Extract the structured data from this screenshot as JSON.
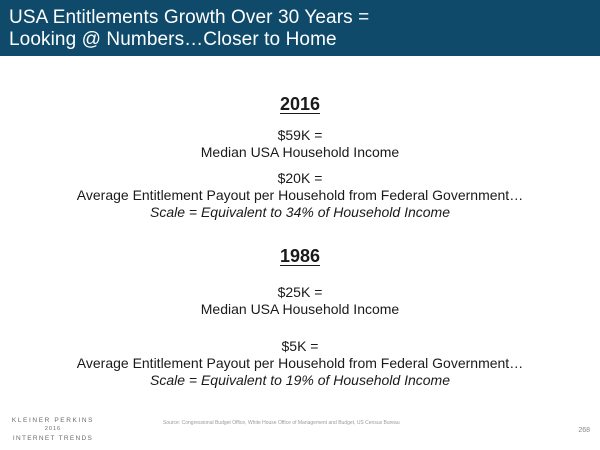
{
  "header": {
    "title_line1": "USA Entitlements Growth Over 30 Years =",
    "title_line2": "Looking @ Numbers…Closer to Home"
  },
  "sections": [
    {
      "year": "2016",
      "income_value": "$59K =",
      "income_label": "Median USA Household Income",
      "payout_value": "$20K =",
      "payout_label": "Average Entitlement Payout per Household from Federal Government…",
      "scale_text": "Scale = Equivalent to 34% of Household Income"
    },
    {
      "year": "1986",
      "income_value": "$25K =",
      "income_label": "Median USA Household Income",
      "payout_value": "$5K =",
      "payout_label": "Average Entitlement Payout per Household from Federal Government…",
      "scale_text": "Scale = Equivalent to 19% of Household Income"
    }
  ],
  "footer": {
    "source": "Source: Congressional Budget Office, White House Office of Management and Budget, US Census Bureau",
    "page_number": "268",
    "logo_top": "KLEINER PERKINS",
    "logo_year": "2016",
    "logo_bottom": "INTERNET TRENDS"
  }
}
